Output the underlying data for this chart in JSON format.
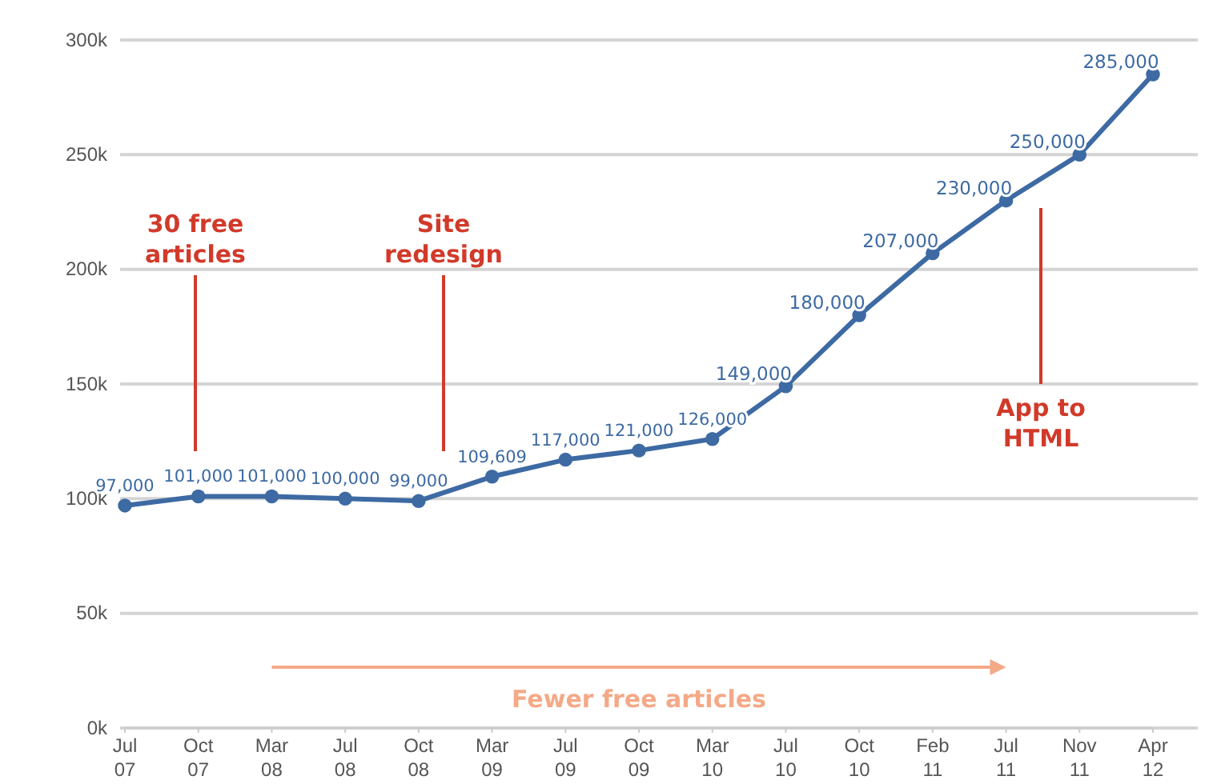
{
  "chart_data": {
    "type": "line",
    "categories": [
      "Jul 07",
      "Oct 07",
      "Mar 08",
      "Jul 08",
      "Oct 08",
      "Mar 09",
      "Jul 09",
      "Oct 09",
      "Mar 10",
      "Jul 10",
      "Oct 10",
      "Feb 11",
      "Jul 11",
      "Nov 11",
      "Apr 12"
    ],
    "series": [
      {
        "color": "#3d6aa3",
        "values": [
          97000,
          101000,
          101000,
          100000,
          99000,
          109609,
          117000,
          121000,
          126000,
          149000,
          180000,
          207000,
          230000,
          250000,
          285000
        ]
      }
    ],
    "ylim": [
      0,
      300000
    ],
    "yticks": [
      {
        "value": 0,
        "label": "0k"
      },
      {
        "value": 50000,
        "label": "50k"
      },
      {
        "value": 100000,
        "label": "100k"
      },
      {
        "value": 150000,
        "label": "150k"
      },
      {
        "value": 200000,
        "label": "200k"
      },
      {
        "value": 250000,
        "label": "250k"
      },
      {
        "value": 300000,
        "label": "300k"
      }
    ],
    "grid": "y",
    "marker": "circle",
    "line_style": "solid",
    "value_labels": [
      "97,000",
      "101,000",
      "101,000",
      "100,000",
      "99,000",
      "109,609",
      "117,000",
      "121,000",
      "126,000",
      "149,000",
      "180,000",
      "207,000",
      "230,000",
      "250,000",
      "285,000"
    ],
    "annotations": [
      "30 free articles",
      "Site redesign",
      "App to HTML",
      "Fewer free articles"
    ]
  }
}
